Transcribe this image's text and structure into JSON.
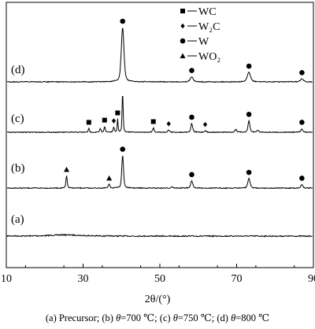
{
  "chart_data": {
    "type": "line",
    "xlabel": "2θ/(°)",
    "xlim": [
      10,
      90
    ],
    "xticks": [
      10,
      30,
      50,
      70,
      90
    ],
    "grid": false,
    "legend_position": "top-right",
    "legend": [
      {
        "marker": "square",
        "label": "WC"
      },
      {
        "marker": "diamond",
        "label": "W₂C"
      },
      {
        "marker": "circle",
        "label": "W"
      },
      {
        "marker": "triangle",
        "label": "WO₂"
      }
    ],
    "series": [
      {
        "name": "(a)",
        "baseline": 0,
        "points": [
          [
            10,
            0.3
          ],
          [
            14,
            0.2
          ],
          [
            17,
            0.3
          ],
          [
            20,
            0.6
          ],
          [
            22,
            1.2
          ],
          [
            24,
            1.7
          ],
          [
            25,
            1.8
          ],
          [
            26,
            1.7
          ],
          [
            28,
            1.3
          ],
          [
            30,
            0.8
          ],
          [
            33,
            0.4
          ],
          [
            36,
            0.2
          ],
          [
            40,
            0.1
          ],
          [
            50,
            0
          ],
          [
            60,
            0
          ],
          [
            70,
            0.1
          ],
          [
            80,
            0
          ],
          [
            90,
            0
          ]
        ],
        "peaks": []
      },
      {
        "name": "(b)",
        "baseline": 0,
        "points": [],
        "peaks": [
          {
            "x": 25.7,
            "h": 17,
            "w": 0.22,
            "marker": "triangle"
          },
          {
            "x": 36.8,
            "h": 5,
            "w": 0.3,
            "marker": "triangle"
          },
          {
            "x": 40.3,
            "h": 45,
            "w": 0.3,
            "marker": "circle"
          },
          {
            "x": 53.2,
            "h": 2,
            "w": 0.3,
            "marker": null
          },
          {
            "x": 58.3,
            "h": 10,
            "w": 0.35,
            "marker": "circle"
          },
          {
            "x": 73.2,
            "h": 13,
            "w": 0.4,
            "marker": "circle"
          },
          {
            "x": 87.0,
            "h": 5,
            "w": 0.35,
            "marker": "circle"
          }
        ]
      },
      {
        "name": "(c)",
        "baseline": 0,
        "points": [],
        "peaks": [
          {
            "x": 31.5,
            "h": 5,
            "w": 0.2,
            "marker": "square"
          },
          {
            "x": 34.5,
            "h": 5,
            "w": 0.2,
            "marker": null
          },
          {
            "x": 35.6,
            "h": 8,
            "w": 0.2,
            "marker": "square"
          },
          {
            "x": 38.0,
            "h": 7,
            "w": 0.2,
            "marker": "diamond"
          },
          {
            "x": 39.0,
            "h": 18,
            "w": 0.15,
            "marker": "square"
          },
          {
            "x": 40.3,
            "h": 55,
            "w": 0.18,
            "marker": null
          },
          {
            "x": 48.3,
            "h": 6,
            "w": 0.25,
            "marker": "square"
          },
          {
            "x": 52.3,
            "h": 3,
            "w": 0.3,
            "marker": "diamond"
          },
          {
            "x": 58.3,
            "h": 12,
            "w": 0.3,
            "marker": "circle"
          },
          {
            "x": 61.8,
            "h": 2,
            "w": 0.3,
            "marker": "diamond"
          },
          {
            "x": 69.8,
            "h": 4,
            "w": 0.3,
            "marker": null
          },
          {
            "x": 73.2,
            "h": 16,
            "w": 0.3,
            "marker": "circle"
          },
          {
            "x": 75.5,
            "h": 3,
            "w": 0.3,
            "marker": null
          },
          {
            "x": 87.0,
            "h": 5,
            "w": 0.3,
            "marker": "circle"
          }
        ]
      },
      {
        "name": "(d)",
        "baseline": 0,
        "points": [],
        "peaks": [
          {
            "x": 40.3,
            "h": 75,
            "w": 0.45,
            "marker": "circle"
          },
          {
            "x": 58.3,
            "h": 7,
            "w": 0.5,
            "marker": "circle"
          },
          {
            "x": 73.2,
            "h": 13,
            "w": 0.55,
            "marker": "circle"
          },
          {
            "x": 87.0,
            "h": 4,
            "w": 0.5,
            "marker": "circle"
          }
        ]
      }
    ]
  },
  "caption": {
    "a": "(a) Precursor; (b) ",
    "theta1": "θ",
    "b": "=700 ℃; (c) ",
    "theta2": "θ",
    "c": "=750 ℃; (d) ",
    "theta3": "θ",
    "d": "=800 ℃"
  }
}
